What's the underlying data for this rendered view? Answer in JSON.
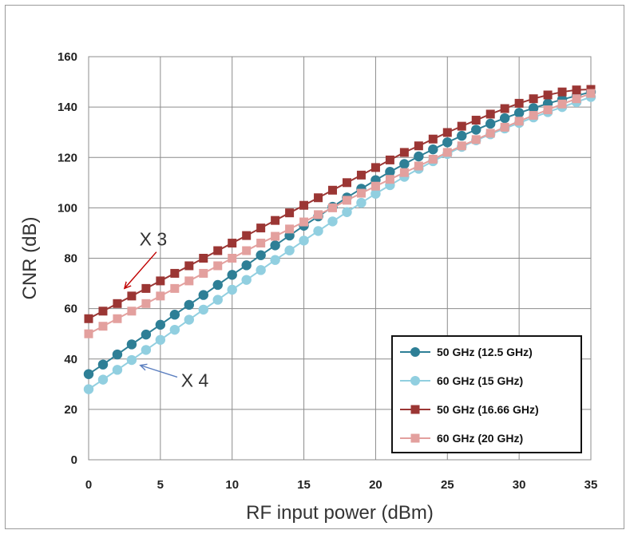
{
  "chart_data": {
    "type": "line",
    "xlabel": "RF input power (dBm)",
    "ylabel": "CNR (dB)",
    "xlim": [
      0,
      35
    ],
    "ylim": [
      0,
      160
    ],
    "x_ticks": [
      "0",
      "5",
      "10",
      "15",
      "20",
      "25",
      "30",
      "35"
    ],
    "y_ticks": [
      "0",
      "20",
      "40",
      "60",
      "80",
      "100",
      "120",
      "140",
      "160"
    ],
    "grid": true,
    "legend_position": "bottom-right",
    "x": [
      0,
      1,
      2,
      3,
      4,
      5,
      6,
      7,
      8,
      9,
      10,
      11,
      12,
      13,
      14,
      15,
      16,
      17,
      18,
      19,
      20,
      21,
      22,
      23,
      24,
      25,
      26,
      27,
      28,
      29,
      30,
      31,
      32,
      33,
      34,
      35
    ],
    "series": [
      {
        "name": "50 GHz (12.5 GHz)",
        "color": "#2e7f96",
        "marker": "circle",
        "values": [
          34,
          37.8,
          41.8,
          45.8,
          49.7,
          53.6,
          57.6,
          61.5,
          65.4,
          69.4,
          73.4,
          77.2,
          81.2,
          85.1,
          89,
          92.9,
          96.6,
          100.4,
          104.1,
          107.6,
          111,
          114.3,
          117.4,
          120.4,
          123.2,
          126,
          128.6,
          131,
          133.4,
          135.6,
          137.7,
          139.6,
          141.4,
          143,
          144.5,
          146
        ]
      },
      {
        "name": "60 GHz (15 GHz)",
        "color": "#91cfe0",
        "marker": "circle",
        "values": [
          28,
          31.8,
          35.7,
          39.6,
          43.6,
          47.6,
          51.6,
          55.6,
          59.6,
          63.5,
          67.5,
          71.4,
          75.3,
          79.3,
          83.1,
          87,
          90.8,
          94.6,
          98.3,
          102,
          105.6,
          109,
          112.3,
          115.5,
          118.5,
          121.4,
          124.2,
          126.8,
          129.2,
          131.5,
          133.7,
          135.9,
          138,
          140,
          142,
          144
        ]
      },
      {
        "name": "50 GHz (16.66 GHz)",
        "color": "#9b3634",
        "marker": "square",
        "values": [
          56,
          59,
          62,
          65,
          68,
          71,
          74,
          77,
          80,
          83,
          86,
          89,
          92,
          95,
          98,
          101,
          104,
          107,
          110,
          113,
          116,
          119,
          122,
          124.6,
          127.3,
          129.9,
          132.4,
          134.8,
          137.2,
          139.4,
          141.5,
          143.3,
          144.8,
          146,
          146.8,
          147
        ]
      },
      {
        "name": "60 GHz (20 GHz)",
        "color": "#e3a09e",
        "marker": "square",
        "values": [
          50,
          53,
          56,
          59,
          62,
          65,
          68,
          71,
          74,
          77,
          80,
          83,
          86,
          88.7,
          91.6,
          94.4,
          97.3,
          100,
          103,
          105.8,
          108.6,
          111.3,
          114,
          116.6,
          119.3,
          122,
          124.6,
          127.1,
          129.6,
          132,
          134.4,
          136.7,
          138.9,
          141.2,
          143.3,
          145.4
        ]
      }
    ],
    "annotations": [
      {
        "text": "X 3",
        "x": 4.5,
        "y": 85,
        "arrow_to": [
          2.5,
          68
        ]
      },
      {
        "text": "X 4",
        "x": 7.4,
        "y": 29,
        "arrow_to": [
          3.6,
          37.5
        ]
      }
    ]
  }
}
